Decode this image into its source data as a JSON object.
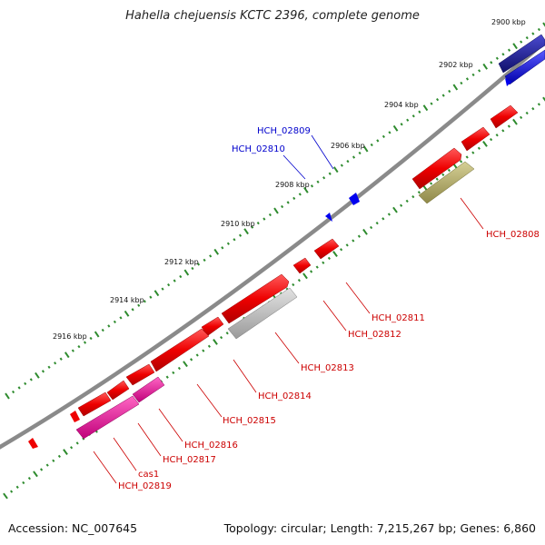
{
  "title": "Hahella chejuensis KCTC 2396, complete genome",
  "footer": {
    "accession": "Accession: NC_007645",
    "summary": "Topology: circular; Length: 7,215,267 bp; Genes: 6,860"
  },
  "ticks": [
    {
      "label": "2900 kbp"
    },
    {
      "label": "2902 kbp"
    },
    {
      "label": "2904 kbp"
    },
    {
      "label": "2906 kbp"
    },
    {
      "label": "2908 kbp"
    },
    {
      "label": "2910 kbp"
    },
    {
      "label": "2912 kbp"
    },
    {
      "label": "2914 kbp"
    },
    {
      "label": "2916 kbp"
    }
  ],
  "gene_labels": [
    {
      "text": "HCH_02809",
      "color": "#0000cc"
    },
    {
      "text": "HCH_02810",
      "color": "#0000cc"
    },
    {
      "text": "HCH_02808",
      "color": "#cc0000"
    },
    {
      "text": "HCH_02811",
      "color": "#cc0000"
    },
    {
      "text": "HCH_02812",
      "color": "#cc0000"
    },
    {
      "text": "HCH_02813",
      "color": "#cc0000"
    },
    {
      "text": "HCH_02814",
      "color": "#cc0000"
    },
    {
      "text": "HCH_02815",
      "color": "#cc0000"
    },
    {
      "text": "HCH_02816",
      "color": "#cc0000"
    },
    {
      "text": "HCH_02817",
      "color": "#cc0000"
    },
    {
      "text": "cas1",
      "color": "#cc0000"
    },
    {
      "text": "HCH_02819",
      "color": "#cc0000"
    }
  ],
  "colors": {
    "backbone": "#8a8a8a",
    "tick_green": "#2e8b2e",
    "forward_gene": "#ee0000",
    "reverse_gene": "#0000cc",
    "dark_blue_gene": "#1a1a99",
    "gray_gene": "#b8b8b8",
    "olive_gene": "#b5ad6a",
    "magenta_gene": "#ee1199"
  }
}
